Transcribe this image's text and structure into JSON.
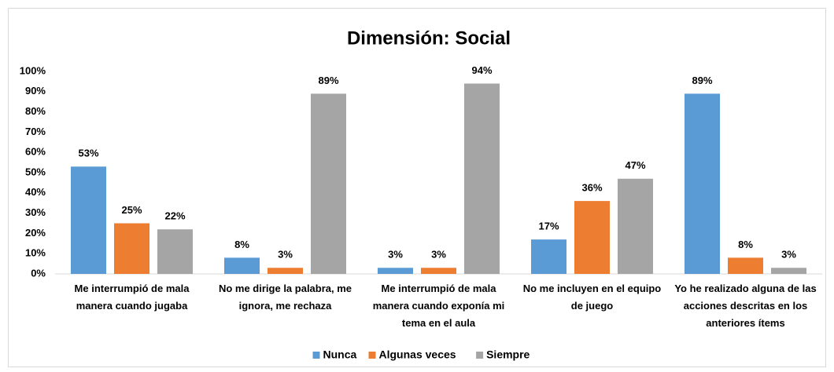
{
  "chart_data": {
    "type": "bar",
    "title": "Dimensión: Social",
    "categories": [
      "Me interrumpió de mala manera cuando jugaba",
      "No me dirige la palabra, me ignora, me rechaza",
      "Me interrumpió de mala manera cuando exponía mi tema en el aula",
      "No me incluyen en el equipo de juego",
      "Yo he realizado alguna de las acciones descritas en los anteriores ítems"
    ],
    "series": [
      {
        "name": "Nunca",
        "color": "#5b9bd5",
        "values": [
          53,
          8,
          3,
          17,
          89
        ],
        "value_labels": [
          "53%",
          "8%",
          "3%",
          "17%",
          "89%"
        ]
      },
      {
        "name": "Algunas veces",
        "color": "#ed7d31",
        "values": [
          25,
          3,
          3,
          36,
          8
        ],
        "value_labels": [
          "25%",
          "3%",
          "3%",
          "36%",
          "8%"
        ]
      },
      {
        "name": "Siempre",
        "color": "#a5a5a5",
        "values": [
          22,
          89,
          94,
          47,
          3
        ],
        "value_labels": [
          "22%",
          "89%",
          "94%",
          "47%",
          "3%"
        ]
      }
    ],
    "ylim": [
      0,
      100
    ],
    "yticks": [
      {
        "value": 0,
        "label": "0%"
      },
      {
        "value": 10,
        "label": "10%"
      },
      {
        "value": 20,
        "label": "20%"
      },
      {
        "value": 30,
        "label": "30%"
      },
      {
        "value": 40,
        "label": "40%"
      },
      {
        "value": 50,
        "label": "50%"
      },
      {
        "value": 60,
        "label": "60%"
      },
      {
        "value": 70,
        "label": "70%"
      },
      {
        "value": 80,
        "label": "80%"
      },
      {
        "value": 90,
        "label": "90%"
      },
      {
        "value": 100,
        "label": "100%"
      }
    ],
    "legend": "bottom"
  }
}
